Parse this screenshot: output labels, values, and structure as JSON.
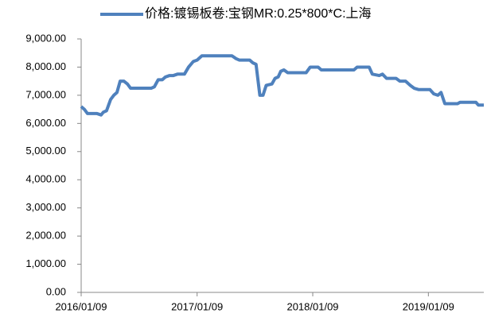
{
  "chart_data": {
    "type": "line",
    "x": [
      "2016/01/09",
      "2016/01/19",
      "2016/01/29",
      "2016/02/28",
      "2016/03/12",
      "2016/03/19",
      "2016/03/29",
      "2016/04/11",
      "2016/04/21",
      "2016/05/01",
      "2016/05/11",
      "2016/05/23",
      "2016/06/03",
      "2016/06/13",
      "2016/08/17",
      "2016/08/27",
      "2016/09/08",
      "2016/09/21",
      "2016/10/01",
      "2016/10/14",
      "2016/10/26",
      "2016/11/08",
      "2016/11/30",
      "2016/12/13",
      "2016/12/28",
      "2017/01/09",
      "2017/01/24",
      "2017/04/29",
      "2017/05/12",
      "2017/05/22",
      "2017/06/24",
      "2017/07/04",
      "2017/07/14",
      "2017/07/26",
      "2017/08/05",
      "2017/08/15",
      "2017/09/02",
      "2017/09/12",
      "2017/09/22",
      "2017/09/30",
      "2017/10/10",
      "2017/10/22",
      "2017/12/19",
      "2018/01/01",
      "2018/01/26",
      "2018/02/05",
      "2018/05/19",
      "2018/05/29",
      "2018/07/06",
      "2018/07/16",
      "2018/08/07",
      "2018/08/17",
      "2018/08/30",
      "2018/09/29",
      "2018/10/11",
      "2018/10/29",
      "2018/11/13",
      "2018/11/25",
      "2018/12/10",
      "2019/01/14",
      "2019/01/26",
      "2019/02/08",
      "2019/02/18",
      "2019/03/02",
      "2019/04/11",
      "2019/04/19",
      "2019/06/08",
      "2019/06/16",
      "2019/07/03"
    ],
    "series": [
      {
        "name": "价格:镀锡板卷:宝钢MR:0.25*800*C:上海",
        "color": "#4f81bd",
        "values": [
          6600,
          6500,
          6350,
          6350,
          6300,
          6400,
          6450,
          6850,
          7000,
          7100,
          7500,
          7500,
          7400,
          7250,
          7250,
          7300,
          7550,
          7550,
          7650,
          7700,
          7700,
          7750,
          7750,
          8000,
          8200,
          8250,
          8400,
          8400,
          8300,
          8250,
          8250,
          8150,
          8100,
          7000,
          7000,
          7350,
          7400,
          7600,
          7650,
          7850,
          7900,
          7800,
          7800,
          8000,
          8000,
          7900,
          7900,
          8000,
          8000,
          7750,
          7700,
          7750,
          7600,
          7600,
          7500,
          7500,
          7350,
          7250,
          7200,
          7200,
          7050,
          7000,
          7100,
          6700,
          6700,
          6750,
          6750,
          6650,
          6650
        ]
      }
    ],
    "xlim": [
      "2016/01/09",
      "2019/07/03"
    ],
    "xticks": [
      "2016/01/09",
      "2017/01/09",
      "2018/01/09",
      "2019/01/09"
    ],
    "ylim": [
      0,
      9000
    ],
    "yticks": [
      {
        "value": 0,
        "label": "0.00"
      },
      {
        "value": 1000,
        "label": "1,000.00"
      },
      {
        "value": 2000,
        "label": "2,000.00"
      },
      {
        "value": 3000,
        "label": "3,000.00"
      },
      {
        "value": 4000,
        "label": "4,000.00"
      },
      {
        "value": 5000,
        "label": "5,000.00"
      },
      {
        "value": 6000,
        "label": "6,000.00"
      },
      {
        "value": 7000,
        "label": "7,000.00"
      },
      {
        "value": 8000,
        "label": "8,000.00"
      },
      {
        "value": 9000,
        "label": "9,000.00"
      }
    ],
    "legend": "top",
    "grid": false
  }
}
